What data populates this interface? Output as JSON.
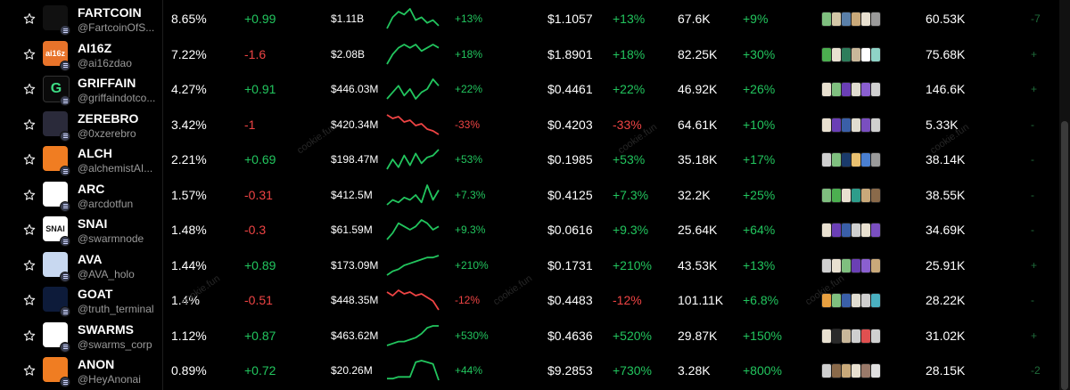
{
  "watermark": "cookie.fun",
  "colors": {
    "positive": "#22c55e",
    "negative": "#ef4444",
    "background": "#000000",
    "muted": "#9a9a9a"
  },
  "rows": [
    {
      "name": "FARTCOIN",
      "handle": "@FartcoinOfS...",
      "avatar_text": "",
      "avatar_bg": "#111111",
      "mindshare": "8.65%",
      "mindshare_delta": "+0.99",
      "mindshare_dir": "pos",
      "market_cap": "$1.11B",
      "spark": [
        8,
        12,
        14,
        13,
        15,
        11,
        12,
        10,
        11,
        9
      ],
      "spark_dir": "pos",
      "mc_change": "+13%",
      "mc_dir": "pos",
      "price": "$1.1057",
      "price_change": "+13%",
      "price_dir": "pos",
      "engagements": "67.6K",
      "eng_change": "+9%",
      "eng_dir": "pos",
      "smart_colors": [
        "#7fbf7f",
        "#d4c7a8",
        "#5a7fa8",
        "#c9a97a",
        "#e8e0d0",
        "#9a9a9a"
      ],
      "followers": "60.53K",
      "edge": "-7"
    },
    {
      "name": "AI16Z",
      "handle": "@ai16zdao",
      "avatar_text": "ai16z",
      "avatar_bg": "#e8732a",
      "mindshare": "7.22%",
      "mindshare_delta": "-1.6",
      "mindshare_dir": "neg",
      "market_cap": "$2.08B",
      "spark": [
        6,
        9,
        11,
        12,
        11,
        12,
        10,
        11,
        12,
        11
      ],
      "spark_dir": "pos",
      "mc_change": "+18%",
      "mc_dir": "pos",
      "price": "$1.8901",
      "price_change": "+18%",
      "price_dir": "pos",
      "engagements": "82.25K",
      "eng_change": "+30%",
      "eng_dir": "pos",
      "smart_colors": [
        "#4caf50",
        "#e8e0d0",
        "#2e7d5b",
        "#c9b79a",
        "#ffffff",
        "#8fd3c7"
      ],
      "followers": "75.68K",
      "edge": "+"
    },
    {
      "name": "GRIFFAIN",
      "handle": "@griffaindotco...",
      "avatar_text": "G",
      "avatar_bg": "#0a0a0a",
      "mindshare": "4.27%",
      "mindshare_delta": "+0.91",
      "mindshare_dir": "pos",
      "market_cap": "$446.03M",
      "spark": [
        6,
        8,
        10,
        7,
        9,
        6,
        8,
        9,
        12,
        10
      ],
      "spark_dir": "pos",
      "mc_change": "+22%",
      "mc_dir": "pos",
      "price": "$0.4461",
      "price_change": "+22%",
      "price_dir": "pos",
      "engagements": "46.92K",
      "eng_change": "+26%",
      "eng_dir": "pos",
      "smart_colors": [
        "#e8e0d0",
        "#7fbf7f",
        "#6a3fb5",
        "#e0dcd0",
        "#8a5fd0",
        "#d0d0d0"
      ],
      "followers": "146.6K",
      "edge": "+"
    },
    {
      "name": "ZEREBRO",
      "handle": "@0xzerebro",
      "avatar_text": "",
      "avatar_bg": "#2a2a3a",
      "mindshare": "3.42%",
      "mindshare_delta": "-1",
      "mindshare_dir": "neg",
      "market_cap": "$420.34M",
      "spark": [
        14,
        12,
        13,
        10,
        11,
        8,
        9,
        6,
        5,
        3
      ],
      "spark_dir": "neg",
      "mc_change": "-33%",
      "mc_dir": "neg",
      "price": "$0.4203",
      "price_change": "-33%",
      "price_dir": "neg",
      "engagements": "64.61K",
      "eng_change": "+10%",
      "eng_dir": "pos",
      "smart_colors": [
        "#e8e0d0",
        "#6a3fb5",
        "#3a5fa8",
        "#e0dcd0",
        "#7a4fc0",
        "#cfcfcf"
      ],
      "followers": "5.33K",
      "edge": "-"
    },
    {
      "name": "ALCH",
      "handle": "@alchemistAI...",
      "avatar_text": "",
      "avatar_bg": "#f07d22",
      "mindshare": "2.21%",
      "mindshare_delta": "+0.69",
      "mindshare_dir": "pos",
      "market_cap": "$198.47M",
      "spark": [
        4,
        9,
        5,
        11,
        6,
        12,
        7,
        10,
        11,
        14
      ],
      "spark_dir": "pos",
      "mc_change": "+53%",
      "mc_dir": "pos",
      "price": "$0.1985",
      "price_change": "+53%",
      "price_dir": "pos",
      "engagements": "35.18K",
      "eng_change": "+17%",
      "eng_dir": "pos",
      "smart_colors": [
        "#cfcfcf",
        "#7fbf7f",
        "#1a3a6a",
        "#e8c070",
        "#4a7fd0",
        "#9a9a9a"
      ],
      "followers": "38.14K",
      "edge": "-"
    },
    {
      "name": "ARC",
      "handle": "@arcdotfun",
      "avatar_text": "",
      "avatar_bg": "#ffffff",
      "mindshare": "1.57%",
      "mindshare_delta": "-0.31",
      "mindshare_dir": "neg",
      "market_cap": "$412.5M",
      "spark": [
        4,
        6,
        5,
        7,
        6,
        8,
        5,
        12,
        6,
        10
      ],
      "spark_dir": "pos",
      "mc_change": "+7.3%",
      "mc_dir": "pos",
      "price": "$0.4125",
      "price_change": "+7.3%",
      "price_dir": "pos",
      "engagements": "32.2K",
      "eng_change": "+25%",
      "eng_dir": "pos",
      "smart_colors": [
        "#7fbf7f",
        "#4caf50",
        "#e8e0d0",
        "#2e9d8b",
        "#c9a97a",
        "#8a6a4a"
      ],
      "followers": "38.55K",
      "edge": "-"
    },
    {
      "name": "SNAI",
      "handle": "@swarmnode",
      "avatar_text": "SNAI",
      "avatar_bg": "#ffffff",
      "mindshare": "1.48%",
      "mindshare_delta": "-0.3",
      "mindshare_dir": "neg",
      "market_cap": "$61.59M",
      "spark": [
        6,
        8,
        11,
        10,
        9,
        10,
        12,
        11,
        9,
        10
      ],
      "spark_dir": "pos",
      "mc_change": "+9.3%",
      "mc_dir": "pos",
      "price": "$0.0616",
      "price_change": "+9.3%",
      "price_dir": "pos",
      "engagements": "25.64K",
      "eng_change": "+64%",
      "eng_dir": "pos",
      "smart_colors": [
        "#e8e0d0",
        "#6a3fb5",
        "#3a5fa8",
        "#cfcfcf",
        "#e8e0d0",
        "#7a4fc0"
      ],
      "followers": "34.69K",
      "edge": "-"
    },
    {
      "name": "AVA",
      "handle": "@AVA_holo",
      "avatar_text": "",
      "avatar_bg": "#c8d8f0",
      "mindshare": "1.44%",
      "mindshare_delta": "+0.89",
      "mindshare_dir": "pos",
      "market_cap": "$173.09M",
      "spark": [
        3,
        5,
        6,
        8,
        9,
        10,
        11,
        12,
        12,
        13
      ],
      "spark_dir": "pos",
      "mc_change": "+210%",
      "mc_dir": "pos",
      "price": "$0.1731",
      "price_change": "+210%",
      "price_dir": "pos",
      "engagements": "43.53K",
      "eng_change": "+13%",
      "eng_dir": "pos",
      "smart_colors": [
        "#cfcfcf",
        "#e8e0d0",
        "#7fbf7f",
        "#6a3fb5",
        "#8a5fd0",
        "#c9a97a"
      ],
      "followers": "25.91K",
      "edge": "+"
    },
    {
      "name": "GOAT",
      "handle": "@truth_terminal",
      "avatar_text": "",
      "avatar_bg": "#0d1b3a",
      "mindshare": "1.4%",
      "mindshare_delta": "-0.51",
      "mindshare_dir": "neg",
      "market_cap": "$448.35M",
      "spark": [
        12,
        10,
        13,
        11,
        12,
        10,
        11,
        9,
        7,
        2
      ],
      "spark_dir": "neg",
      "mc_change": "-12%",
      "mc_dir": "neg",
      "price": "$0.4483",
      "price_change": "-12%",
      "price_dir": "neg",
      "engagements": "101.11K",
      "eng_change": "+6.8%",
      "eng_dir": "pos",
      "smart_colors": [
        "#e8a040",
        "#7fbf7f",
        "#3a5fa8",
        "#e0dcd0",
        "#cfcfcf",
        "#4ab0c0"
      ],
      "followers": "28.22K",
      "edge": "-"
    },
    {
      "name": "SWARMS",
      "handle": "@swarms_corp",
      "avatar_text": "",
      "avatar_bg": "#ffffff",
      "mindshare": "1.12%",
      "mindshare_delta": "+0.87",
      "mindshare_dir": "pos",
      "market_cap": "$463.62M",
      "spark": [
        3,
        4,
        5,
        5,
        6,
        7,
        9,
        12,
        13,
        13
      ],
      "spark_dir": "pos",
      "mc_change": "+530%",
      "mc_dir": "pos",
      "price": "$0.4636",
      "price_change": "+520%",
      "price_dir": "pos",
      "engagements": "29.87K",
      "eng_change": "+150%",
      "eng_dir": "pos",
      "smart_colors": [
        "#e8e0d0",
        "#2a2a2a",
        "#c9b79a",
        "#cfcfcf",
        "#e05050",
        "#d0d0d0"
      ],
      "followers": "31.02K",
      "edge": "+"
    },
    {
      "name": "ANON",
      "handle": "@HeyAnonai",
      "avatar_text": "",
      "avatar_bg": "#f07d22",
      "mindshare": "0.89%",
      "mindshare_delta": "+0.72",
      "mindshare_dir": "pos",
      "market_cap": "$20.26M",
      "spark": [
        2,
        2,
        3,
        3,
        3,
        12,
        13,
        12,
        11,
        1
      ],
      "spark_dir": "pos",
      "mc_change": "+44%",
      "mc_dir": "pos",
      "price": "$9.2853",
      "price_change": "+730%",
      "price_dir": "pos",
      "engagements": "3.28K",
      "eng_change": "+800%",
      "eng_dir": "pos",
      "smart_colors": [
        "#cfcfcf",
        "#8a6a4a",
        "#c9a97a",
        "#e8e0d0",
        "#9a7a6a",
        "#e0e0e0"
      ],
      "followers": "28.15K",
      "edge": "-2"
    }
  ]
}
